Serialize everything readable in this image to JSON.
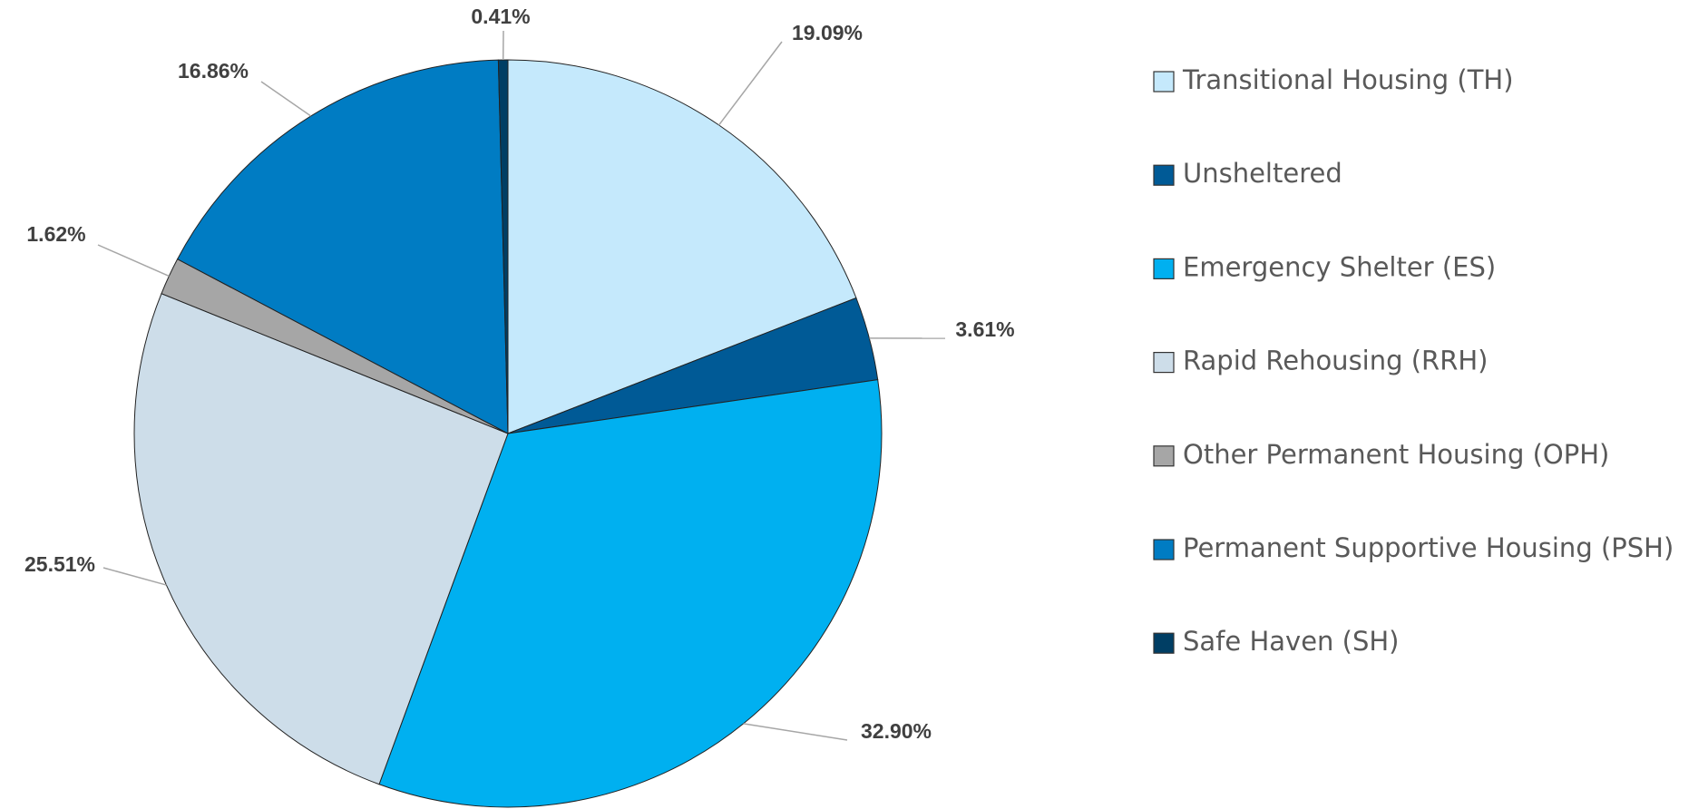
{
  "chart_data": {
    "type": "pie",
    "categories": [
      "Transitional Housing (TH)",
      "Unsheltered",
      "Emergency Shelter (ES)",
      "Rapid Rehousing (RRH)",
      "Other Permanent Housing (OPH)",
      "Permanent Supportive Housing (PSH)",
      "Safe Haven (SH)"
    ],
    "values": [
      19.09,
      3.61,
      32.9,
      25.51,
      1.62,
      16.86,
      0.41
    ],
    "value_labels": [
      "19.09%",
      "3.61%",
      "32.90%",
      "25.51%",
      "1.62%",
      "16.86%",
      "0.41%"
    ],
    "colors": [
      "#c5e9fc",
      "#005a96",
      "#00b0f0",
      "#cddde9",
      "#a6a6a6",
      "#007cc3",
      "#003e64"
    ],
    "legend": "right"
  }
}
